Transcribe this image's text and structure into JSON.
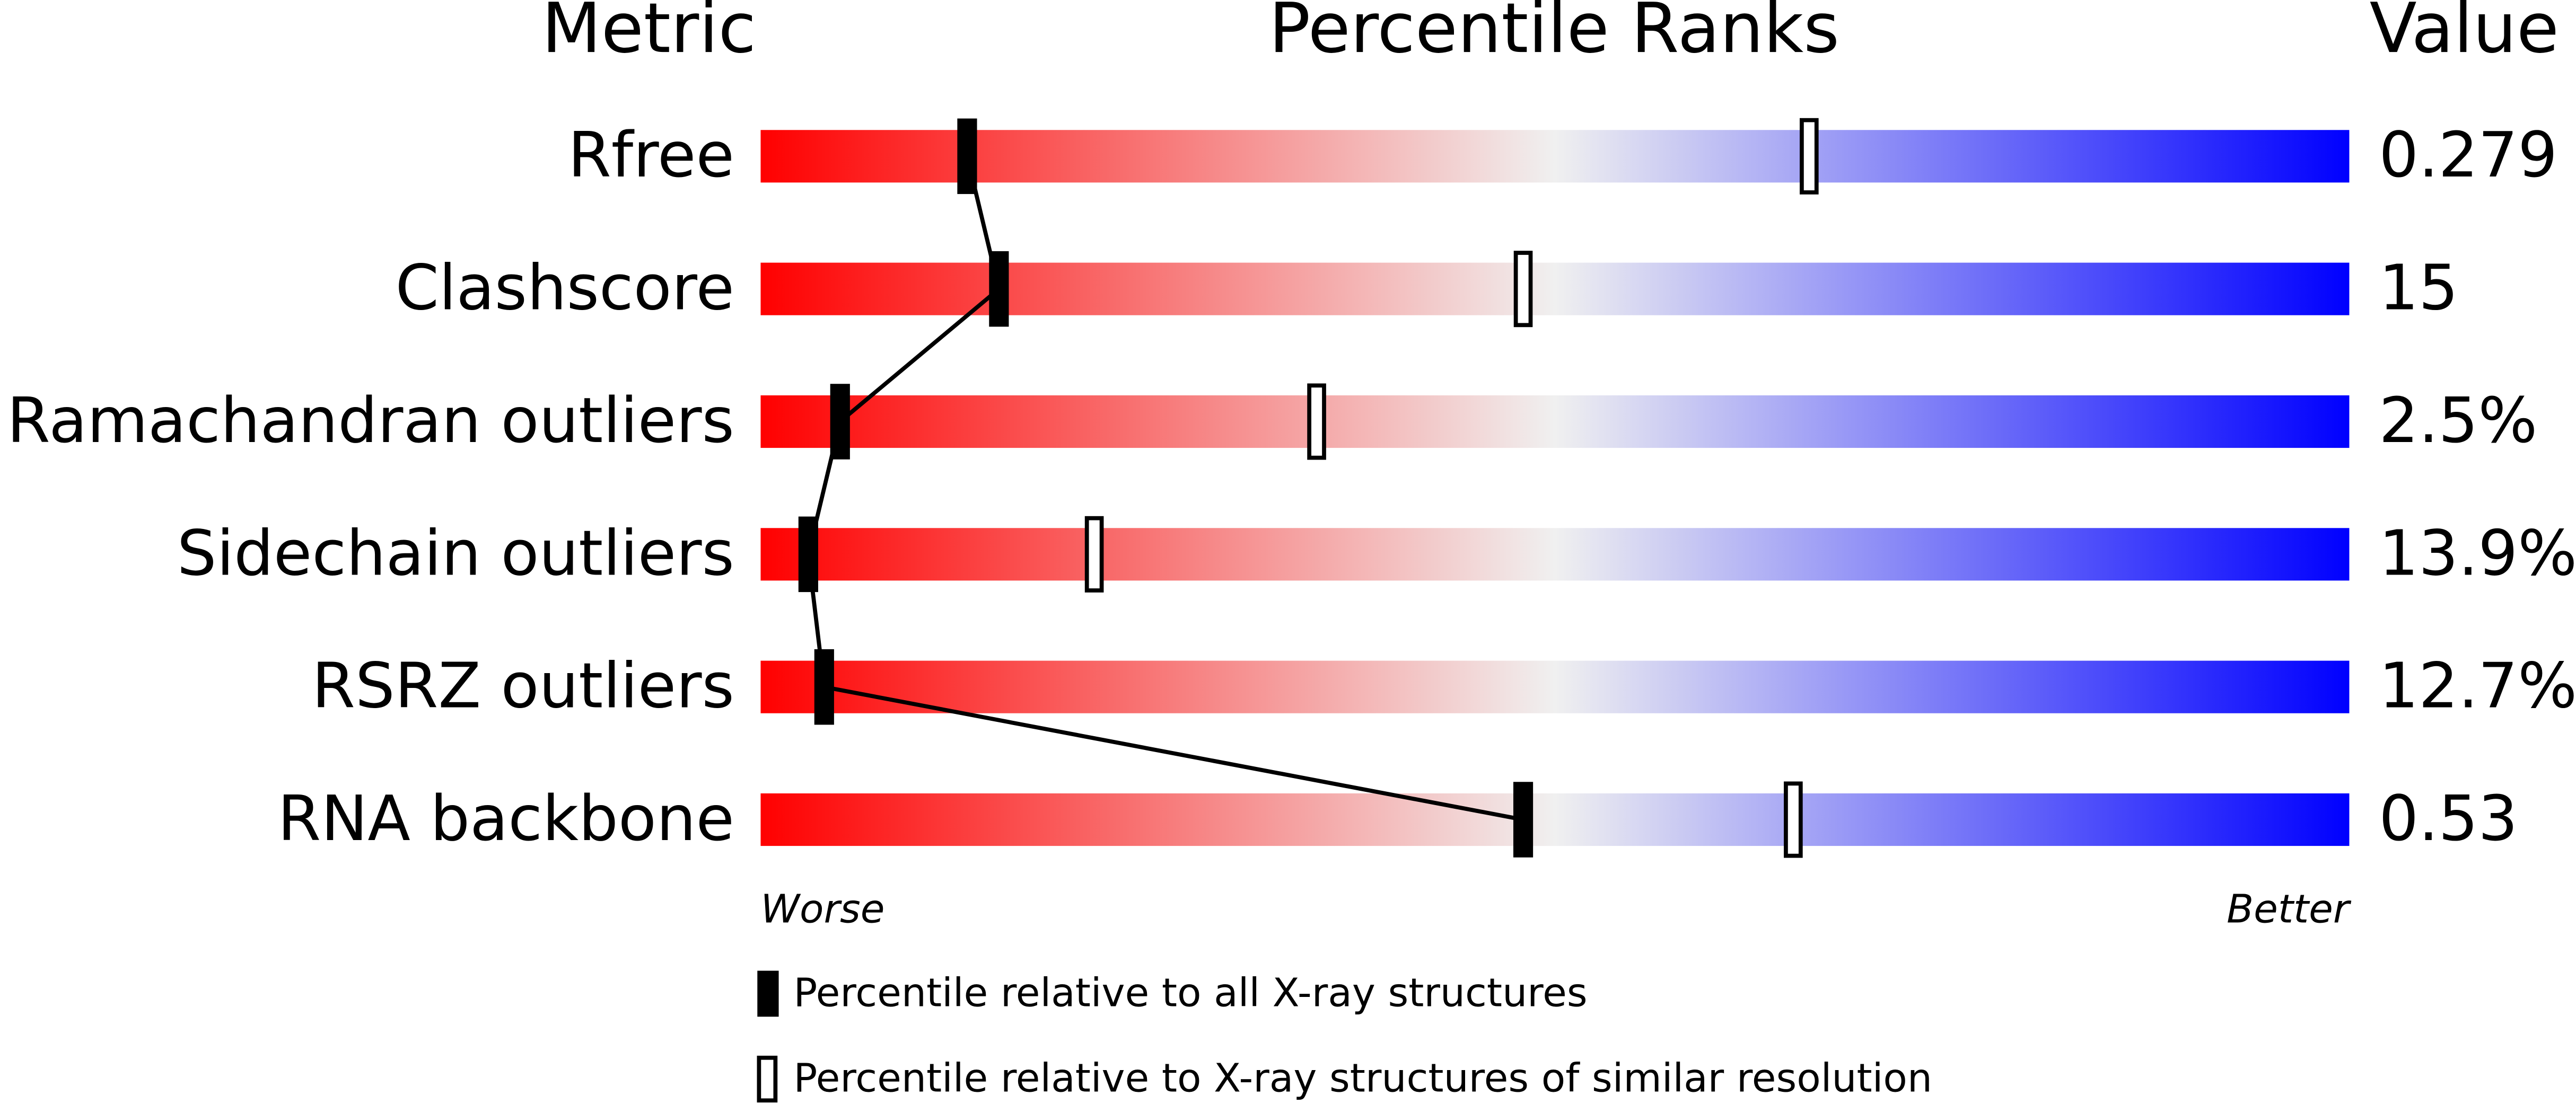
{
  "chart_data": {
    "type": "percentile",
    "column_headers": [
      "Metric",
      "Percentile Ranks",
      "Value"
    ],
    "categories": [
      "Rfree",
      "Clashscore",
      "Ramachandran outliers",
      "Sidechain outliers",
      "RSRZ outliers",
      "RNA backbone"
    ],
    "metric_values": [
      "0.279",
      "15",
      "2.5%",
      "13.9%",
      "12.7%",
      "0.53"
    ],
    "xlim": [
      0,
      100
    ],
    "axis_ends": [
      "Worse",
      "Better"
    ],
    "gradient_colors": [
      "#ff0000",
      "#f0f0f0",
      "#0000ff"
    ],
    "series": [
      {
        "name": "Percentile relative to all X-ray structures",
        "style": "solid",
        "color": "#000000",
        "values": [
          13,
          15,
          5,
          3,
          4,
          48
        ]
      },
      {
        "name": "Percentile relative to X-ray structures of similar resolution",
        "style": "hollow",
        "color": "#000000",
        "values": [
          66,
          48,
          35,
          21,
          null,
          65
        ]
      }
    ]
  }
}
